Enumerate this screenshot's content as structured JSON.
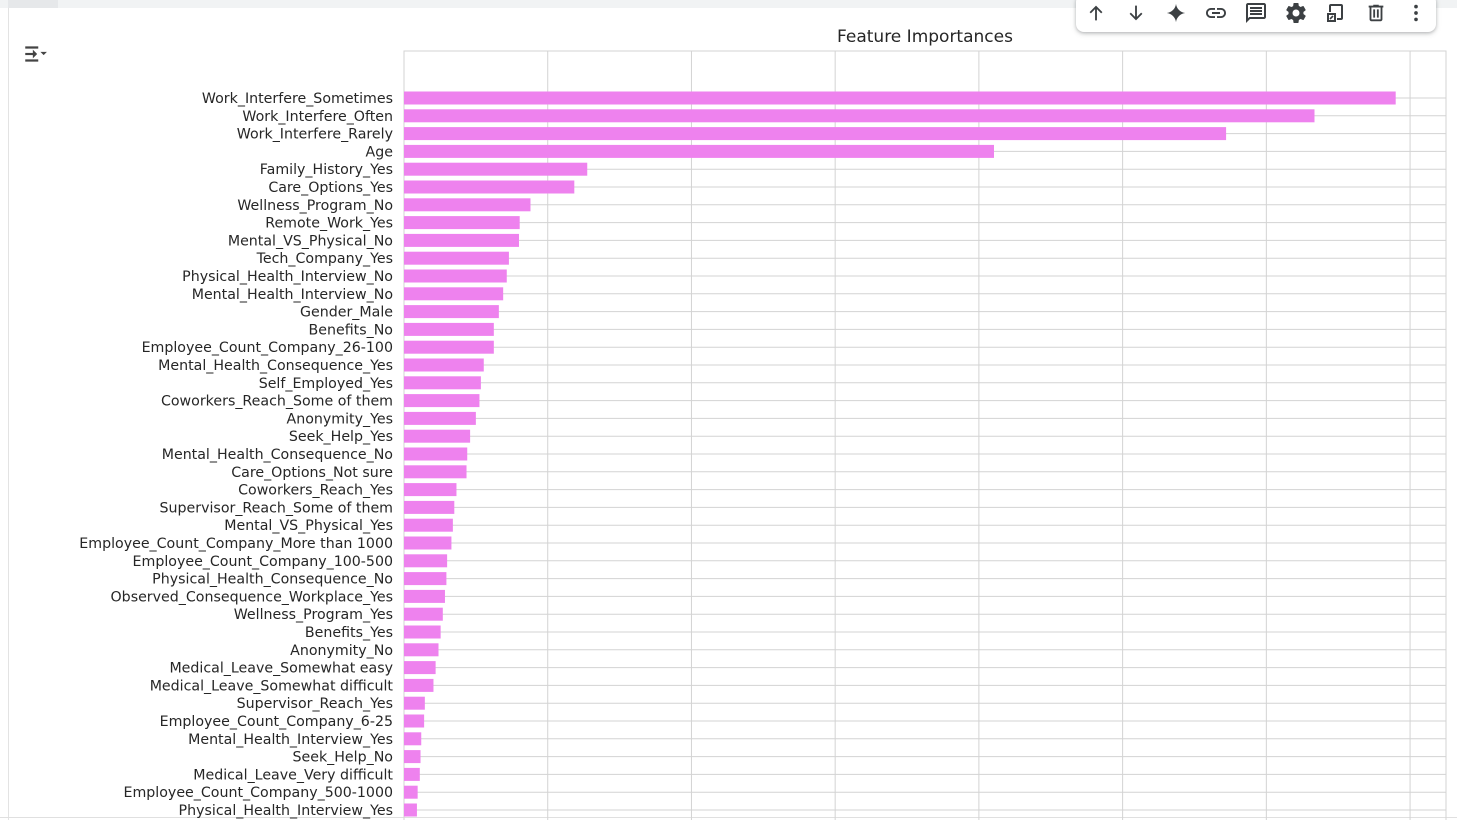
{
  "toolbar": {
    "buttons": [
      {
        "name": "move-up-button",
        "icon": "arrow-up-icon"
      },
      {
        "name": "move-down-button",
        "icon": "arrow-down-icon"
      },
      {
        "name": "gemini-button",
        "icon": "sparkle-icon"
      },
      {
        "name": "link-button",
        "icon": "link-icon"
      },
      {
        "name": "comment-button",
        "icon": "comment-icon"
      },
      {
        "name": "settings-button",
        "icon": "gear-icon"
      },
      {
        "name": "mirror-cell-button",
        "icon": "mirror-icon"
      },
      {
        "name": "delete-button",
        "icon": "trash-icon"
      },
      {
        "name": "more-button",
        "icon": "more-vert-icon"
      }
    ]
  },
  "output": {
    "toggle_icon": "output-toggle-icon"
  },
  "chart_data": {
    "type": "bar",
    "orientation": "horizontal",
    "title": "Feature Importances",
    "xlabel": "",
    "ylabel": "",
    "grid": true,
    "bar_color": "#ee82ee",
    "grid_color": "#d3d3d3",
    "xlim": [
      0,
      0.145
    ],
    "categories": [
      "Work_Interfere_Sometimes",
      "Work_Interfere_Often",
      "Work_Interfere_Rarely",
      "Age",
      "Family_History_Yes",
      "Care_Options_Yes",
      "Wellness_Program_No",
      "Remote_Work_Yes",
      "Mental_VS_Physical_No",
      "Tech_Company_Yes",
      "Physical_Health_Interview_No",
      "Mental_Health_Interview_No",
      "Gender_Male",
      "Benefits_No",
      "Employee_Count_Company_26-100",
      "Mental_Health_Consequence_Yes",
      "Self_Employed_Yes",
      "Coworkers_Reach_Some of them",
      "Anonymity_Yes",
      "Seek_Help_Yes",
      "Mental_Health_Consequence_No",
      "Care_Options_Not sure",
      "Coworkers_Reach_Yes",
      "Supervisor_Reach_Some of them",
      "Mental_VS_Physical_Yes",
      "Employee_Count_Company_More than 1000",
      "Employee_Count_Company_100-500",
      "Physical_Health_Consequence_No",
      "Observed_Consequence_Workplace_Yes",
      "Wellness_Program_Yes",
      "Benefits_Yes",
      "Anonymity_No",
      "Medical_Leave_Somewhat easy",
      "Medical_Leave_Somewhat difficult",
      "Supervisor_Reach_Yes",
      "Employee_Count_Company_6-25",
      "Mental_Health_Interview_Yes",
      "Seek_Help_No",
      "Medical_Leave_Very difficult",
      "Employee_Count_Company_500-1000",
      "Physical_Health_Interview_Yes"
    ],
    "values": [
      0.138,
      0.1267,
      0.1144,
      0.0821,
      0.0255,
      0.0237,
      0.0176,
      0.0161,
      0.016,
      0.0146,
      0.0143,
      0.0138,
      0.0132,
      0.0125,
      0.0125,
      0.0111,
      0.0107,
      0.0105,
      0.01,
      0.0092,
      0.0088,
      0.0087,
      0.0073,
      0.007,
      0.0068,
      0.0066,
      0.006,
      0.0059,
      0.0057,
      0.0054,
      0.0051,
      0.0048,
      0.0044,
      0.0041,
      0.0029,
      0.0028,
      0.0024,
      0.0023,
      0.0022,
      0.0019,
      0.0018
    ]
  }
}
